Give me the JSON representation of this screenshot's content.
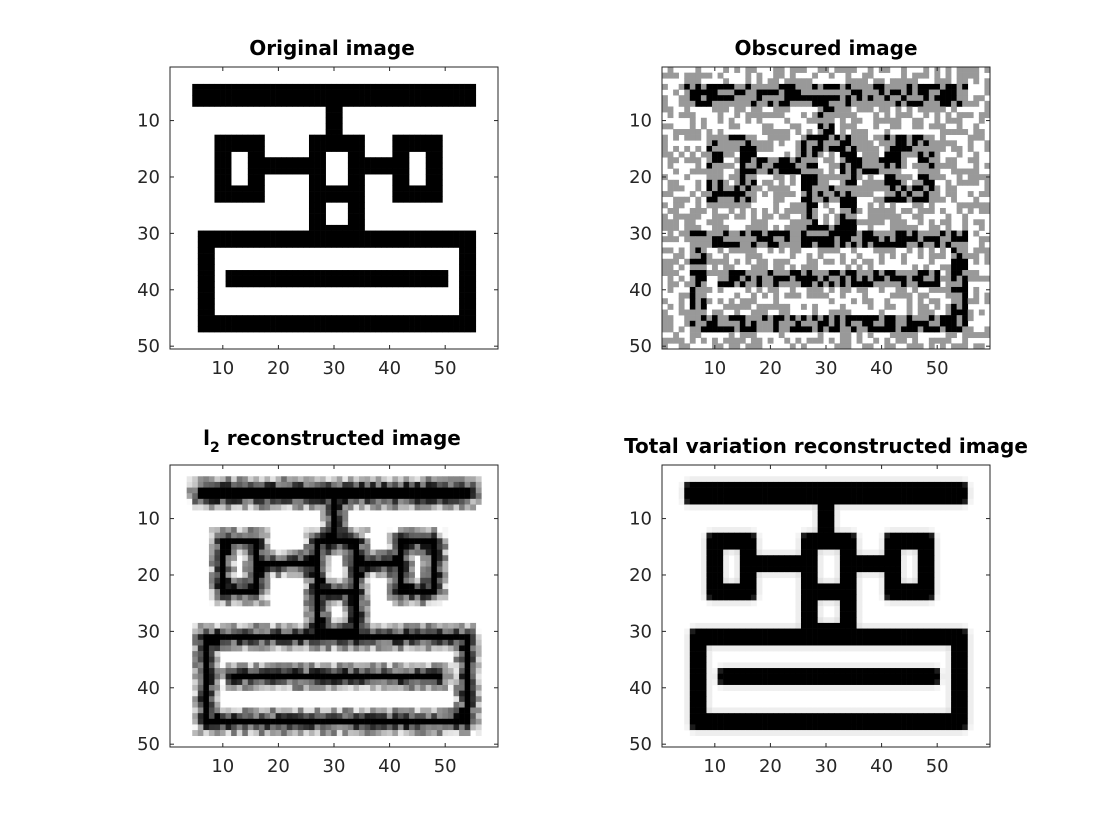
{
  "figure": {
    "background": "#ffffff"
  },
  "chart_data": [
    {
      "type": "heatmap",
      "id": "original",
      "title": "Original image",
      "xticks": [
        10,
        20,
        30,
        40,
        50
      ],
      "yticks": [
        10,
        20,
        30,
        40,
        50
      ],
      "xlim": [
        0.5,
        59.5
      ],
      "ylim": [
        0.5,
        50.5
      ],
      "colormap": "gray",
      "image": "sharp binary test pattern: top horizontal bar, stem, row of three hollow squares joined by bars, frame box containing a horizontal bar"
    },
    {
      "type": "heatmap",
      "id": "obscured",
      "title": "Obscured image",
      "xticks": [
        10,
        20,
        30,
        40,
        50
      ],
      "yticks": [
        10,
        20,
        30,
        40,
        50
      ],
      "xlim": [
        0.5,
        59.5
      ],
      "ylim": [
        0.5,
        50.5
      ],
      "colormap": "gray",
      "image": "same pattern with roughly half of the pixels replaced by grey unknown values"
    },
    {
      "type": "heatmap",
      "id": "l2",
      "title": "l",
      "title_sub": "2",
      "title_rest": " reconstructed image",
      "xticks": [
        10,
        20,
        30,
        40,
        50
      ],
      "yticks": [
        10,
        20,
        30,
        40,
        50
      ],
      "xlim": [
        0.5,
        59.5
      ],
      "ylim": [
        0.5,
        50.5
      ],
      "colormap": "gray",
      "image": "blurry reconstruction of the pattern with smeared edges"
    },
    {
      "type": "heatmap",
      "id": "tv",
      "title": "Total variation reconstructed image",
      "xticks": [
        10,
        20,
        30,
        40,
        50
      ],
      "yticks": [
        10,
        20,
        30,
        40,
        50
      ],
      "xlim": [
        0.5,
        59.5
      ],
      "ylim": [
        0.5,
        50.5
      ],
      "colormap": "gray",
      "image": "sharp reconstruction closely matching the original pattern"
    }
  ]
}
